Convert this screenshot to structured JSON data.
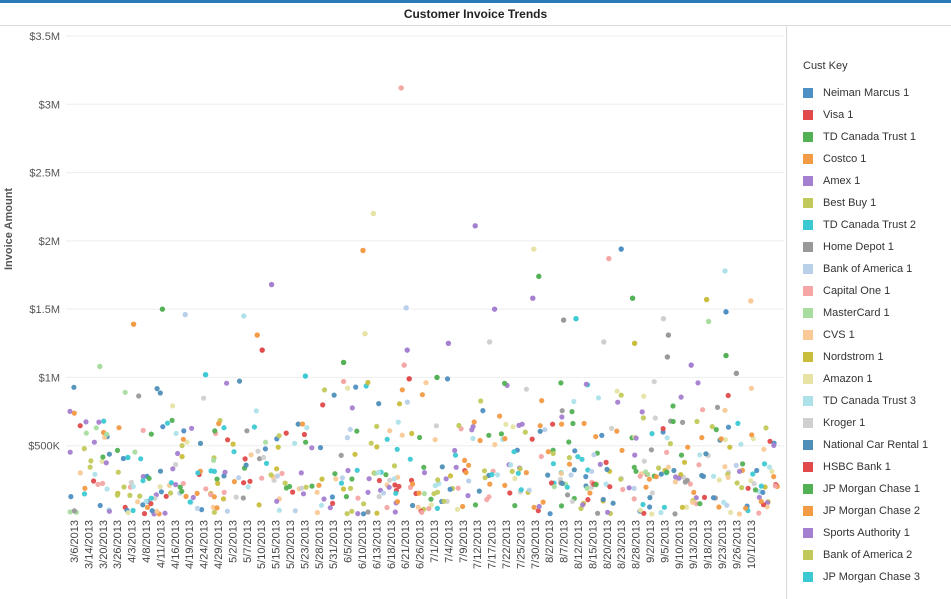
{
  "chart_data": {
    "type": "scatter",
    "title": "Customer Invoice Trends",
    "ylabel": "Invoice Amount",
    "xlabel": "",
    "ylim": [
      0,
      3500000
    ],
    "yticks": [
      {
        "value": 500000,
        "label": "$500K"
      },
      {
        "value": 1000000,
        "label": "$1M"
      },
      {
        "value": 1500000,
        "label": "$1.5M"
      },
      {
        "value": 2000000,
        "label": "$2M"
      },
      {
        "value": 2500000,
        "label": "$2.5M"
      },
      {
        "value": 3000000,
        "label": "$3M"
      },
      {
        "value": 3500000,
        "label": "$3.5M"
      }
    ],
    "x_categories": [
      "3/6/2013",
      "3/14/2013",
      "3/20/2013",
      "3/26/2013",
      "4/3/2013",
      "4/8/2013",
      "4/11/2013",
      "4/16/2013",
      "4/19/2013",
      "4/24/2013",
      "4/29/2013",
      "5/2/2013",
      "5/7/2013",
      "5/10/2013",
      "5/15/2013",
      "5/20/2013",
      "5/23/2013",
      "5/28/2013",
      "5/31/2013",
      "6/5/2013",
      "6/10/2013",
      "6/13/2013",
      "6/18/2013",
      "6/21/2013",
      "6/26/2013",
      "7/1/2013",
      "7/4/2013",
      "7/9/2013",
      "7/12/2013",
      "7/17/2013",
      "7/22/2013",
      "7/25/2013",
      "7/30/2013",
      "8/2/2013",
      "8/7/2013",
      "8/12/2013",
      "8/15/2013",
      "8/20/2013",
      "8/23/2013",
      "8/28/2013",
      "9/2/2013",
      "9/5/2013",
      "9/10/2013",
      "9/13/2013",
      "9/18/2013",
      "9/23/2013",
      "9/26/2013",
      "10/1/2013"
    ],
    "grid": true,
    "legend": {
      "title": "Cust Key",
      "placement": "right",
      "entries": [
        {
          "name": "Neiman Marcus 1",
          "color": "#4e8fc4"
        },
        {
          "name": "Visa 1",
          "color": "#e04a4a"
        },
        {
          "name": "TD Canada Trust 1",
          "color": "#52b154"
        },
        {
          "name": "Costco 1",
          "color": "#f39a45"
        },
        {
          "name": "Amex 1",
          "color": "#a57fd0"
        },
        {
          "name": "Best Buy 1",
          "color": "#c1c95a"
        },
        {
          "name": "TD Canada Trust 2",
          "color": "#3cc9d3"
        },
        {
          "name": "Home Depot 1",
          "color": "#999999"
        },
        {
          "name": "Bank of America 1",
          "color": "#b8d0ea"
        },
        {
          "name": "Capital One 1",
          "color": "#f4a7a5"
        },
        {
          "name": "MasterCard 1",
          "color": "#a9dda0"
        },
        {
          "name": "CVS 1",
          "color": "#f9c996"
        },
        {
          "name": "Nordstrom 1",
          "color": "#c9bd3b"
        },
        {
          "name": "Amazon 1",
          "color": "#e6e3a5"
        },
        {
          "name": "TD Canada Trust 3",
          "color": "#aee1ea"
        },
        {
          "name": "Kroger 1",
          "color": "#cfcfcf"
        },
        {
          "name": "National Car Rental 1",
          "color": "#4e8fb7"
        },
        {
          "name": "HSBC Bank 1",
          "color": "#e04a4a"
        },
        {
          "name": "JP Morgan Chase 1",
          "color": "#52b154"
        },
        {
          "name": "JP Morgan Chase 2",
          "color": "#f39a45"
        },
        {
          "name": "Sports Authority 1",
          "color": "#a57fd0"
        },
        {
          "name": "Bank of America 2",
          "color": "#c1c95a"
        },
        {
          "name": "JP Morgan Chase 3",
          "color": "#3cc9d3"
        }
      ]
    },
    "notable_points": [
      {
        "x": "6/21/2013",
        "y": 3120000,
        "series": "Capital One 1"
      },
      {
        "x": "6/13/2013",
        "y": 2200000,
        "series": "Amazon 1"
      },
      {
        "x": "7/12/2013",
        "y": 2110000,
        "series": "Amex 1"
      },
      {
        "x": "7/30/2013",
        "y": 1940000,
        "series": "Amazon 1"
      },
      {
        "x": "8/23/2013",
        "y": 1940000,
        "series": "Neiman Marcus 1"
      },
      {
        "x": "6/10/2013",
        "y": 1930000,
        "series": "Costco 1"
      },
      {
        "x": "8/20/2013",
        "y": 1870000,
        "series": "Capital One 1"
      },
      {
        "x": "9/23/2013",
        "y": 1780000,
        "series": "TD Canada Trust 3"
      },
      {
        "x": "7/30/2013",
        "y": 1740000,
        "series": "TD Canada Trust 1"
      },
      {
        "x": "5/15/2013",
        "y": 1680000,
        "series": "Amex 1"
      },
      {
        "x": "8/28/2013",
        "y": 1580000,
        "series": "TD Canada Trust 1"
      },
      {
        "x": "7/30/2013",
        "y": 1580000,
        "series": "Amex 1"
      },
      {
        "x": "9/18/2013",
        "y": 1570000,
        "series": "Nordstrom 1"
      },
      {
        "x": "10/1/2013",
        "y": 1560000,
        "series": "CVS 1"
      },
      {
        "x": "6/21/2013",
        "y": 1510000,
        "series": "Bank of America 1"
      },
      {
        "x": "4/11/2013",
        "y": 1500000,
        "series": "TD Canada Trust 1"
      },
      {
        "x": "7/17/2013",
        "y": 1500000,
        "series": "Amex 1"
      },
      {
        "x": "9/23/2013",
        "y": 1480000,
        "series": "Neiman Marcus 1"
      },
      {
        "x": "4/19/2013",
        "y": 1460000,
        "series": "Bank of America 1"
      },
      {
        "x": "5/7/2013",
        "y": 1450000,
        "series": "TD Canada Trust 3"
      },
      {
        "x": "8/12/2013",
        "y": 1430000,
        "series": "TD Canada Trust 2"
      },
      {
        "x": "9/5/2013",
        "y": 1430000,
        "series": "Kroger 1"
      },
      {
        "x": "8/7/2013",
        "y": 1420000,
        "series": "Home Depot 1"
      },
      {
        "x": "9/18/2013",
        "y": 1410000,
        "series": "MasterCard 1"
      },
      {
        "x": "4/3/2013",
        "y": 1390000,
        "series": "Costco 1"
      },
      {
        "x": "6/10/2013",
        "y": 1320000,
        "series": "Amazon 1"
      },
      {
        "x": "9/5/2013",
        "y": 1310000,
        "series": "Home Depot 1"
      },
      {
        "x": "5/10/2013",
        "y": 1310000,
        "series": "Costco 1"
      },
      {
        "x": "8/20/2013",
        "y": 1260000,
        "series": "Kroger 1"
      },
      {
        "x": "7/17/2013",
        "y": 1260000,
        "series": "Kroger 1"
      },
      {
        "x": "8/28/2013",
        "y": 1250000,
        "series": "Nordstrom 1"
      },
      {
        "x": "7/4/2013",
        "y": 1250000,
        "series": "Amex 1"
      },
      {
        "x": "5/10/2013",
        "y": 1200000,
        "series": "Visa 1"
      },
      {
        "x": "6/21/2013",
        "y": 1200000,
        "series": "Amex 1"
      },
      {
        "x": "9/5/2013",
        "y": 1150000,
        "series": "Home Depot 1"
      },
      {
        "x": "9/23/2013",
        "y": 1160000,
        "series": "TD Canada Trust 1"
      },
      {
        "x": "6/5/2013",
        "y": 1110000,
        "series": "TD Canada Trust 1"
      },
      {
        "x": "3/20/2013",
        "y": 1080000,
        "series": "MasterCard 1"
      },
      {
        "x": "9/13/2013",
        "y": 1090000,
        "series": "Amex 1"
      },
      {
        "x": "6/21/2013",
        "y": 1090000,
        "series": "Capital One 1"
      },
      {
        "x": "9/26/2013",
        "y": 1030000,
        "series": "Home Depot 1"
      },
      {
        "x": "5/23/2013",
        "y": 1010000,
        "series": "TD Canada Trust 2"
      },
      {
        "x": "4/24/2013",
        "y": 1020000,
        "series": "TD Canada Trust 2"
      },
      {
        "x": "7/1/2013",
        "y": 1000000,
        "series": "TD Canada Trust 1"
      },
      {
        "x": "6/21/2013",
        "y": 990000,
        "series": "Visa 1"
      },
      {
        "x": "6/5/2013",
        "y": 970000,
        "series": "Capital One 1"
      }
    ]
  }
}
